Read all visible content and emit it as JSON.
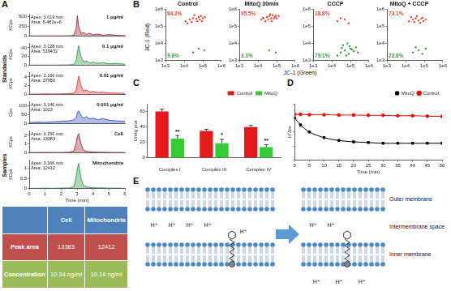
{
  "chart_data": [
    {
      "panel": "A",
      "group": "Standards",
      "type": "line",
      "x": [
        0,
        0.5,
        1,
        1.5,
        2,
        2.5,
        2.8,
        2.95,
        3.02,
        3.1,
        3.25,
        3.4,
        3.6,
        3.8,
        4,
        4.3,
        4.6,
        5,
        5.5,
        6
      ],
      "values": [
        2,
        2,
        3,
        2,
        4,
        5,
        15,
        200,
        520,
        250,
        60,
        90,
        40,
        70,
        30,
        50,
        20,
        35,
        15,
        10
      ],
      "color": "#8b1a1a",
      "ylabel": "KCps",
      "xlim": [
        0,
        6
      ],
      "ylim": [
        0,
        550
      ],
      "yticks": [
        0,
        250,
        500
      ],
      "tick_labels": "y",
      "annotations": [
        "Apex: 3.019 min",
        "Area: 6.482e+6"
      ],
      "label": "1 μg/ml"
    },
    {
      "panel": "A",
      "group": "Standards",
      "type": "line",
      "x": [
        0,
        0.5,
        1,
        1.5,
        2,
        2.5,
        2.8,
        2.95,
        3.02,
        3.1,
        3.25,
        3.4,
        3.6,
        3.8,
        4,
        4.3,
        4.6,
        5,
        5.5,
        6
      ],
      "values": [
        0.3,
        0.2,
        0.4,
        0.3,
        0.5,
        0.6,
        1.5,
        12,
        30,
        45,
        20,
        8,
        10,
        5,
        7,
        4,
        6,
        3,
        4,
        2
      ],
      "color": "#1e8c3a",
      "ylabel": "KCps",
      "xlim": [
        0,
        6
      ],
      "ylim": [
        0,
        50
      ],
      "yticks": [
        0,
        20,
        40
      ],
      "tick_labels": "y",
      "annotations": [
        "Apex: 3.128 min",
        "Area: 519432"
      ],
      "label": "0.1 μg/ml"
    },
    {
      "panel": "A",
      "group": "Standards",
      "type": "line",
      "x": [
        0,
        0.5,
        1,
        1.5,
        2,
        2.5,
        2.8,
        2.95,
        3.02,
        3.1,
        3.25,
        3.4,
        3.6,
        3.8,
        4,
        4.3,
        4.6,
        5,
        5.5,
        6
      ],
      "values": [
        0.05,
        0.05,
        0.1,
        0.08,
        0.1,
        0.15,
        0.3,
        1,
        2.6,
        4.2,
        2,
        0.8,
        1,
        0.5,
        0.7,
        0.4,
        0.5,
        0.3,
        0.3,
        0.2
      ],
      "color": "#e02020",
      "ylabel": "KCps",
      "xlim": [
        0,
        6
      ],
      "ylim": [
        0,
        5
      ],
      "yticks": [
        0,
        2,
        4
      ],
      "tick_labels": "y",
      "annotations": [
        "Apex: 3.160 min",
        "Area: 37950"
      ],
      "label": "0.01 μg/ml"
    },
    {
      "panel": "A",
      "group": "Standards",
      "type": "line",
      "x": [
        0,
        0.5,
        1,
        1.5,
        2,
        2.5,
        2.8,
        2.95,
        3.02,
        3.1,
        3.25,
        3.4,
        3.6,
        3.8,
        4,
        4.3,
        4.6,
        5,
        5.5,
        6
      ],
      "values": [
        5,
        8,
        6,
        10,
        12,
        15,
        20,
        35,
        60,
        70,
        45,
        30,
        38,
        25,
        30,
        20,
        28,
        18,
        15,
        12
      ],
      "color": "#2040c0",
      "ylabel": "Cps",
      "xlim": [
        0,
        6
      ],
      "ylim": [
        0,
        120
      ],
      "yticks": [
        0,
        50,
        100
      ],
      "tick_labels": "y",
      "annotations": [
        "Apex: 3.140 min",
        "Area: 1023"
      ],
      "label": "0.001 μg/ml"
    },
    {
      "panel": "A",
      "group": "Samples",
      "type": "line",
      "x": [
        0,
        0.5,
        1,
        1.5,
        2,
        2.5,
        2.8,
        2.95,
        3.02,
        3.1,
        3.25,
        3.4,
        3.6,
        3.8,
        4,
        4.3,
        4.6,
        5,
        5.5,
        6
      ],
      "values": [
        0.02,
        0.02,
        0.03,
        0.02,
        0.03,
        0.05,
        0.2,
        1.2,
        1.9,
        2.2,
        1,
        0.3,
        0.15,
        0.08,
        0.1,
        0.05,
        0.05,
        0.04,
        0.03,
        0.02
      ],
      "color": "#8b1a1a",
      "ylabel": "KCps",
      "xlim": [
        0,
        6
      ],
      "ylim": [
        0,
        2.5
      ],
      "yticks": [
        0,
        1,
        2
      ],
      "tick_labels": "y",
      "annotations": [
        "Apex: 3.150 min",
        "Area: 13383"
      ],
      "label": "Cell"
    },
    {
      "panel": "A",
      "group": "Samples",
      "type": "line",
      "x": [
        0,
        0.5,
        1,
        1.5,
        2,
        2.5,
        2.8,
        2.95,
        3.02,
        3.1,
        3.25,
        3.4,
        3.6,
        3.8,
        4,
        4.3,
        4.6,
        5,
        5.5,
        6
      ],
      "values": [
        0.01,
        0.01,
        0.02,
        0.01,
        0.02,
        0.03,
        0.1,
        0.6,
        1,
        1.25,
        0.5,
        0.15,
        0.08,
        0.05,
        0.05,
        0.03,
        0.03,
        0.02,
        0.02,
        0.01
      ],
      "color": "#1e8c3a",
      "ylabel": "KCps",
      "xlabel": "Time (min)",
      "xlim": [
        0,
        6
      ],
      "xticks": [
        0,
        1,
        2,
        3,
        4,
        5,
        6
      ],
      "ylim": [
        0,
        1.4
      ],
      "yticks": [
        0,
        0.5,
        1
      ],
      "annotations": [
        "Apex: 3.166 min",
        "Area: 12412"
      ],
      "label": "Mitochondria"
    },
    {
      "panel": "B",
      "type": "scatter",
      "title": "Control",
      "log": true,
      "xlim": [
        1000,
        1000000
      ],
      "ylim": [
        1000,
        1000000
      ],
      "xticks": [
        {
          "value": 1000,
          "label": "1e3"
        },
        {
          "value": 10000,
          "label": "1e4"
        },
        {
          "value": 100000,
          "label": "1e5"
        },
        {
          "value": 1000000,
          "label": "1e6"
        }
      ],
      "yticks": [
        {
          "value": 1000,
          "label": "1e3"
        },
        {
          "value": 10000,
          "label": "1e4"
        },
        {
          "value": 100000,
          "label": "1e5"
        },
        {
          "value": 1000000,
          "label": "1e6"
        }
      ],
      "series": [
        {
          "color": "#e8452c",
          "x": [
            12000.0,
            20000.0,
            30000.0,
            45000.0,
            60000.0,
            80000.0,
            100000.0,
            15000.0,
            25000.0,
            50000.0,
            70000.0,
            35000.0,
            90000.0,
            130000.0
          ],
          "values": [
            200000.0,
            250000.0,
            300000.0,
            280000.0,
            350000.0,
            400000.0,
            300000.0,
            150000.0,
            180000.0,
            200000.0,
            250000.0,
            450000.0,
            200000.0,
            350000.0
          ],
          "share": 84.2,
          "share_label": "84.2%"
        },
        {
          "color": "#3a9b3a",
          "x": [
            30000.0,
            60000.0,
            120000.0
          ],
          "values": [
            3000.0,
            5000.0,
            4000.0
          ],
          "share": 9.6,
          "share_label": "9.6%"
        }
      ]
    },
    {
      "panel": "B",
      "type": "scatter",
      "title": "MitoQ 30min",
      "log": true,
      "xlim": [
        1000,
        1000000
      ],
      "ylim": [
        1000,
        1000000
      ],
      "xticks": [
        {
          "value": 1000,
          "label": "1e3"
        },
        {
          "value": 10000,
          "label": "1e4"
        },
        {
          "value": 100000,
          "label": "1e5"
        },
        {
          "value": 1000000,
          "label": "1e6"
        }
      ],
      "yticks": [
        {
          "value": 1000,
          "label": "1e3"
        },
        {
          "value": 10000,
          "label": "1e4"
        },
        {
          "value": 100000,
          "label": "1e5"
        },
        {
          "value": 1000000,
          "label": "1e6"
        }
      ],
      "series": [
        {
          "color": "#e8452c",
          "x": [
            15000.0,
            20000.0,
            30000.0,
            40000.0,
            50000.0,
            60000.0,
            80000.0,
            100000.0,
            130000.0,
            25000.0,
            35000.0,
            45000.0,
            70000.0,
            90000.0,
            18000.0,
            55000.0
          ],
          "values": [
            250000.0,
            300000.0,
            350000.0,
            400000.0,
            300000.0,
            450000.0,
            350000.0,
            300000.0,
            400000.0,
            200000.0,
            250000.0,
            500000.0,
            280000.0,
            420000.0,
            320000.0,
            200000.0
          ],
          "share": 95.5,
          "share_label": "95.5%"
        },
        {
          "color": "#3a9b3a",
          "x": [
            40000.0,
            90000.0
          ],
          "values": [
            4000.0,
            3000.0
          ],
          "share": 3.1,
          "share_label": "3.1%"
        }
      ]
    },
    {
      "panel": "B",
      "type": "scatter",
      "title": "CCCP",
      "log": true,
      "xlim": [
        1000,
        1000000
      ],
      "ylim": [
        1000,
        1000000
      ],
      "xticks": [
        {
          "value": 1000,
          "label": "1e3"
        },
        {
          "value": 10000,
          "label": "1e4"
        },
        {
          "value": 100000,
          "label": "1e5"
        },
        {
          "value": 1000000,
          "label": "1e6"
        }
      ],
      "yticks": [
        {
          "value": 1000,
          "label": "1e3"
        },
        {
          "value": 10000,
          "label": "1e4"
        },
        {
          "value": 100000,
          "label": "1e5"
        },
        {
          "value": 1000000,
          "label": "1e6"
        }
      ],
      "series": [
        {
          "color": "#e8452c",
          "x": [
            20000.0,
            50000.0,
            80000.0,
            30000.0
          ],
          "values": [
            200000.0,
            250000.0,
            150000.0,
            300000.0
          ],
          "share": 18.8,
          "share_label": "18.8%"
        },
        {
          "color": "#3a9b3a",
          "x": [
            20000.0,
            30000.0,
            50000.0,
            80000.0,
            100000.0,
            150000.0,
            200000.0,
            40000.0,
            60000.0,
            120000.0,
            70000.0,
            250000.0,
            90000.0,
            35000.0
          ],
          "values": [
            2000.0,
            3000.0,
            4000.0,
            2500.0,
            5000.0,
            3500.0,
            6000.0,
            8000.0,
            2000.0,
            4500.0,
            10000.0,
            3000.0,
            7000.0,
            5500.0
          ],
          "share": 79.1,
          "share_label": "79.1%"
        }
      ]
    },
    {
      "panel": "B",
      "type": "scatter",
      "title": "MitoQ + CCCP",
      "log": true,
      "xlim": [
        1000,
        1000000
      ],
      "ylim": [
        1000,
        1000000
      ],
      "xticks": [
        {
          "value": 1000,
          "label": "1e3"
        },
        {
          "value": 10000,
          "label": "1e4"
        },
        {
          "value": 100000,
          "label": "1e5"
        },
        {
          "value": 1000000,
          "label": "1e6"
        }
      ],
      "yticks": [
        {
          "value": 1000,
          "label": "1e3"
        },
        {
          "value": 10000,
          "label": "1e4"
        },
        {
          "value": 100000,
          "label": "1e5"
        },
        {
          "value": 1000000,
          "label": "1e6"
        }
      ],
      "series": [
        {
          "color": "#e8452c",
          "x": [
            15000.0,
            25000.0,
            35000.0,
            50000.0,
            70000.0,
            90000.0,
            20000.0,
            40000.0,
            60000.0,
            30000.0,
            80000.0,
            120000.0
          ],
          "values": [
            200000.0,
            250000.0,
            300000.0,
            220000.0,
            280000.0,
            200000.0,
            350000.0,
            400000.0,
            160000.0,
            180000.0,
            320000.0,
            250000.0
          ],
          "share": 73.1,
          "share_label": "73.1%"
        },
        {
          "color": "#3a9b3a",
          "x": [
            25000.0,
            50000.0,
            80000.0,
            120000.0,
            35000.0
          ],
          "values": [
            3000.0,
            4000.0,
            2500.0,
            5000.0,
            6000.0
          ],
          "share": 22.6,
          "share_label": "22.6%"
        }
      ]
    },
    {
      "panel": "C",
      "type": "bar",
      "ylabel": "U/mg prot",
      "categories": [
        "Complex I",
        "Complex III",
        "Complex IV"
      ],
      "series": [
        {
          "name": "Control",
          "color": "#e41a1c",
          "values": [
            60,
            35,
            40
          ],
          "errors": [
            3,
            2,
            2
          ]
        },
        {
          "name": "MitoQ",
          "color": "#33cc33",
          "values": [
            25,
            19,
            14
          ],
          "errors": [
            4,
            5,
            3
          ],
          "significance": [
            "**",
            "*",
            "**"
          ]
        }
      ],
      "ylim": [
        0,
        70
      ],
      "yticks": [
        0,
        20,
        40,
        60
      ],
      "legend": "top"
    },
    {
      "panel": "D",
      "type": "line",
      "ylabel": "H⁺/2e",
      "xlabel": "Time (min)",
      "x": [
        0,
        2,
        5,
        10,
        15,
        20,
        25,
        30,
        35,
        40,
        45,
        50
      ],
      "series": [
        {
          "name": "MitoQ",
          "color": "#000000",
          "marker": "square",
          "values": [
            4.0,
            3.5,
            3.0,
            2.6,
            2.4,
            2.3,
            2.25,
            2.2,
            2.2,
            2.2,
            2.2,
            2.2
          ]
        },
        {
          "name": "Control",
          "color": "#ff0000",
          "marker": "circle",
          "values": [
            4.25,
            4.25,
            4.22,
            4.22,
            4.2,
            4.2,
            4.18,
            4.18,
            4.15,
            4.15,
            4.12,
            4.1
          ]
        }
      ],
      "xlim": [
        0,
        50
      ],
      "xticks": [
        0,
        5,
        10,
        15,
        20,
        25,
        30,
        35,
        40,
        45,
        50
      ],
      "ylim": [
        1,
        5
      ],
      "yticks": [
        1,
        2,
        3,
        4,
        5
      ],
      "tick_labels": "x",
      "legend": "top"
    }
  ],
  "shared_axes": {
    "xlabel": "JC-1 (Green)",
    "ylabel": "JC-1 (Red)"
  },
  "table": {
    "columns": [
      "Cell",
      "Mitochondria"
    ],
    "rows": [
      {
        "label": "Peak area",
        "values": [
          13383,
          12412
        ]
      },
      {
        "label": "Concentration",
        "values": [
          "10.34 ng/ml",
          "10.18 ng/ml"
        ]
      }
    ]
  },
  "diagram": {
    "panel": "E",
    "labels": [
      "Outer membrane",
      "Intermembrane space",
      "Inner membrane"
    ],
    "ion": "H⁺",
    "before": {
      "space_ions": 4,
      "bound_ions": 1
    },
    "after": {
      "space_ions": 2,
      "matrix_ions": 3
    }
  }
}
